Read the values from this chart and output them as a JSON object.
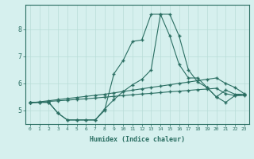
{
  "xlabel": "Humidex (Indice chaleur)",
  "bg_color": "#d6f0ee",
  "line_color": "#2a6e62",
  "grid_color": "#b8ddd8",
  "xlim": [
    -0.5,
    23.5
  ],
  "ylim": [
    4.5,
    8.9
  ],
  "yticks": [
    5,
    6,
    7,
    8
  ],
  "xticks": [
    0,
    1,
    2,
    3,
    4,
    5,
    6,
    7,
    8,
    9,
    10,
    11,
    12,
    13,
    14,
    15,
    16,
    17,
    18,
    19,
    20,
    21,
    22,
    23
  ],
  "line1_x": [
    0,
    1,
    2,
    3,
    4,
    5,
    6,
    7,
    8,
    9,
    10,
    11,
    12,
    13,
    14,
    15,
    16,
    17,
    18,
    19,
    20,
    21,
    22,
    23
  ],
  "line1_y": [
    5.3,
    5.3,
    5.3,
    4.9,
    4.65,
    4.65,
    4.65,
    4.65,
    5.0,
    6.35,
    6.85,
    7.55,
    7.6,
    8.55,
    8.55,
    7.75,
    6.7,
    6.2,
    6.2,
    5.85,
    5.5,
    5.75,
    5.6,
    5.6
  ],
  "line2_x": [
    0,
    2,
    3,
    4,
    5,
    6,
    7,
    8,
    9,
    10,
    11,
    12,
    13,
    14,
    15,
    16,
    17,
    18,
    19,
    20,
    21,
    22,
    23
  ],
  "line2_y": [
    5.3,
    5.3,
    4.9,
    4.65,
    4.65,
    4.65,
    4.65,
    5.05,
    5.4,
    5.7,
    5.95,
    6.15,
    6.5,
    8.55,
    8.55,
    7.75,
    6.5,
    6.05,
    5.85,
    5.5,
    5.3,
    5.55,
    5.6
  ],
  "line3_x": [
    0,
    1,
    2,
    3,
    4,
    5,
    6,
    7,
    8,
    9,
    10,
    11,
    12,
    13,
    14,
    15,
    16,
    17,
    18,
    19,
    20,
    21,
    22,
    23
  ],
  "line3_y": [
    5.28,
    5.32,
    5.36,
    5.4,
    5.44,
    5.48,
    5.52,
    5.56,
    5.6,
    5.65,
    5.7,
    5.75,
    5.8,
    5.85,
    5.9,
    5.95,
    6.0,
    6.05,
    6.1,
    6.15,
    6.2,
    6.0,
    5.85,
    5.62
  ],
  "line4_x": [
    0,
    1,
    2,
    3,
    4,
    5,
    6,
    7,
    8,
    9,
    10,
    11,
    12,
    13,
    14,
    15,
    16,
    17,
    18,
    19,
    20,
    21,
    22,
    23
  ],
  "line4_y": [
    5.28,
    5.3,
    5.33,
    5.36,
    5.38,
    5.41,
    5.43,
    5.46,
    5.49,
    5.52,
    5.55,
    5.58,
    5.61,
    5.63,
    5.66,
    5.69,
    5.71,
    5.74,
    5.77,
    5.79,
    5.82,
    5.62,
    5.55,
    5.55
  ]
}
